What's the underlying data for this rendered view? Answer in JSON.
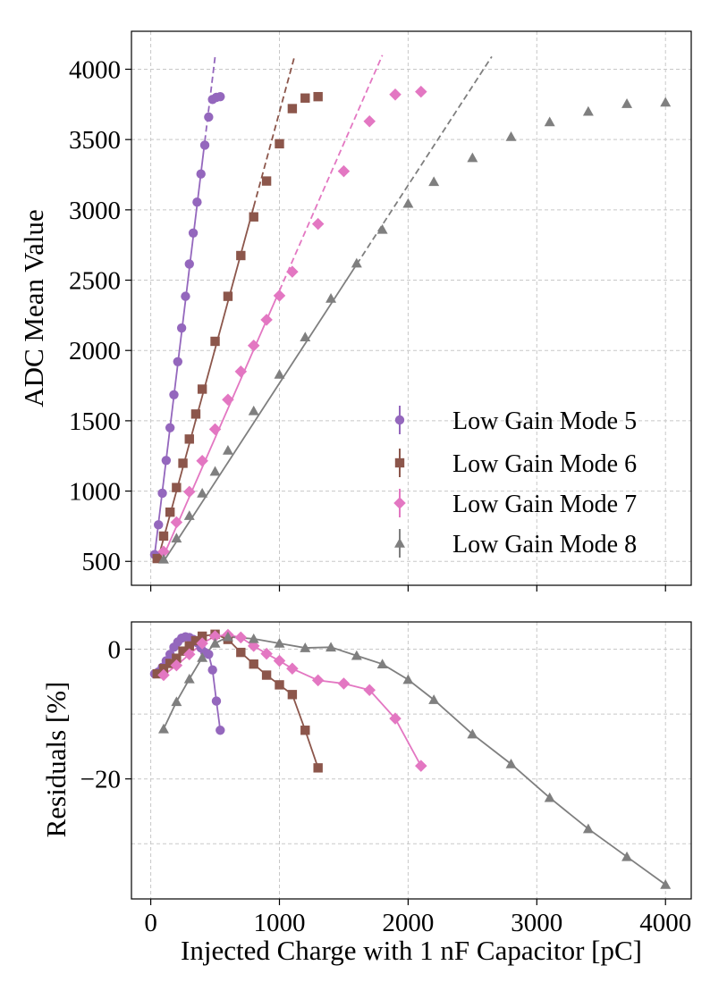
{
  "chart_data": [
    {
      "type": "scatter",
      "panel": "top",
      "xlabel": "",
      "ylabel": "ADC Mean Value",
      "xlim": [
        -150,
        4200
      ],
      "ylim": [
        330,
        4270
      ],
      "xticks": [
        0,
        1000,
        2000,
        3000,
        4000
      ],
      "yticks": [
        500,
        1000,
        1500,
        2000,
        2500,
        3000,
        3500,
        4000
      ],
      "ytick_labels": [
        "500",
        "1000",
        "1500",
        "2000",
        "2500",
        "3000",
        "3500",
        "4000"
      ],
      "grid": true,
      "legend_position": "lower-right",
      "series": [
        {
          "name": "Low Gain Mode 5",
          "color": "#9467bd",
          "marker": "circle",
          "x": [
            30,
            60,
            90,
            120,
            150,
            180,
            210,
            240,
            270,
            300,
            330,
            360,
            390,
            420,
            450,
            480,
            510,
            540
          ],
          "y": [
            548,
            760,
            985,
            1218,
            1450,
            1685,
            1920,
            2160,
            2385,
            2615,
            2835,
            3055,
            3255,
            3460,
            3660,
            3785,
            3800,
            3805
          ],
          "fit": {
            "x1": 30,
            "y1": 545,
            "x2": 500,
            "y2": 4090,
            "solid_until": 420
          }
        },
        {
          "name": "Low Gain Mode 6",
          "color": "#8c564b",
          "marker": "square",
          "x": [
            50,
            100,
            150,
            200,
            250,
            300,
            350,
            400,
            500,
            600,
            700,
            800,
            900,
            1000,
            1100,
            1200,
            1300
          ],
          "y": [
            520,
            680,
            850,
            1025,
            1198,
            1370,
            1548,
            1725,
            2065,
            2385,
            2675,
            2950,
            3205,
            3470,
            3720,
            3795,
            3805
          ],
          "fit": {
            "x1": 50,
            "y1": 495,
            "x2": 1120,
            "y2": 4100,
            "solid_until": 800
          }
        },
        {
          "name": "Low Gain Mode 7",
          "color": "#e377c2",
          "marker": "diamond",
          "x": [
            100,
            200,
            300,
            400,
            500,
            600,
            700,
            800,
            900,
            1000,
            1100,
            1300,
            1500,
            1700,
            1900,
            2100
          ],
          "y": [
            570,
            778,
            995,
            1215,
            1440,
            1650,
            1850,
            2035,
            2218,
            2390,
            2560,
            2900,
            3275,
            3630,
            3820,
            3840
          ],
          "fit": {
            "x1": 100,
            "y1": 540,
            "x2": 1800,
            "y2": 4100,
            "solid_until": 1000
          }
        },
        {
          "name": "Low Gain Mode 8",
          "color": "#7f7f7f",
          "marker": "triangle",
          "x": [
            100,
            200,
            300,
            400,
            500,
            600,
            800,
            1000,
            1200,
            1400,
            1600,
            1800,
            2000,
            2200,
            2500,
            2800,
            3100,
            3400,
            3700,
            4000
          ],
          "y": [
            515,
            665,
            825,
            985,
            1140,
            1290,
            1570,
            1830,
            2095,
            2370,
            2620,
            2860,
            3045,
            3200,
            3370,
            3520,
            3625,
            3700,
            3755,
            3765
          ],
          "fit": {
            "x1": 100,
            "y1": 500,
            "x2": 2650,
            "y2": 4090,
            "solid_until": 1600
          }
        }
      ]
    },
    {
      "type": "line",
      "panel": "bottom",
      "xlabel": "Injected Charge with 1 nF Capacitor [pC]",
      "ylabel": "Residuals [%]",
      "xlim": [
        -150,
        4200
      ],
      "ylim": [
        -38.5,
        4.2
      ],
      "xticks": [
        0,
        1000,
        2000,
        3000,
        4000
      ],
      "xtick_labels": [
        "0",
        "1000",
        "2000",
        "3000",
        "4000"
      ],
      "yticks": [
        0,
        -20
      ],
      "ytick_labels": [
        "0",
        "−20"
      ],
      "extra_grid_y": [
        -10,
        -30
      ],
      "grid": true,
      "series": [
        {
          "name": "Low Gain Mode 5",
          "color": "#9467bd",
          "marker": "circle",
          "x": [
            30,
            60,
            90,
            120,
            150,
            180,
            210,
            240,
            270,
            300,
            330,
            360,
            390,
            420,
            450,
            480,
            510,
            540
          ],
          "y": [
            -3.8,
            -3.5,
            -2.8,
            -1.8,
            -0.8,
            0.3,
            1.1,
            1.7,
            1.9,
            1.8,
            1.5,
            1.0,
            0.2,
            -0.5,
            -0.8,
            -3.2,
            -8.0,
            -12.5
          ]
        },
        {
          "name": "Low Gain Mode 6",
          "color": "#8c564b",
          "marker": "square",
          "x": [
            50,
            100,
            150,
            200,
            250,
            300,
            350,
            400,
            500,
            600,
            700,
            800,
            900,
            1000,
            1100,
            1200,
            1300
          ],
          "y": [
            -3.8,
            -3.0,
            -2.2,
            -1.4,
            -0.3,
            0.5,
            1.3,
            2.0,
            2.3,
            1.5,
            -0.5,
            -2.3,
            -4.0,
            -5.5,
            -7.0,
            -12.5,
            -18.3
          ]
        },
        {
          "name": "Low Gain Mode 7",
          "color": "#e377c2",
          "marker": "diamond",
          "x": [
            100,
            200,
            300,
            400,
            500,
            600,
            700,
            800,
            900,
            1000,
            1100,
            1300,
            1500,
            1700,
            1900,
            2100
          ],
          "y": [
            -4.0,
            -2.5,
            -0.8,
            0.9,
            2.0,
            2.2,
            1.8,
            0.5,
            -0.7,
            -1.8,
            -3.0,
            -4.8,
            -5.3,
            -6.3,
            -10.7,
            -18.0
          ]
        },
        {
          "name": "Low Gain Mode 8",
          "color": "#7f7f7f",
          "marker": "triangle",
          "x": [
            100,
            200,
            300,
            400,
            500,
            600,
            800,
            1000,
            1200,
            1400,
            1600,
            1800,
            2000,
            2200,
            2500,
            2800,
            3100,
            3400,
            3700,
            4000
          ],
          "y": [
            -12.3,
            -8.1,
            -4.6,
            -1.3,
            0.9,
            1.9,
            1.6,
            0.9,
            0.2,
            0.3,
            -1.0,
            -2.3,
            -4.7,
            -7.8,
            -13.1,
            -17.7,
            -22.9,
            -27.7,
            -32.0,
            -36.3
          ]
        }
      ]
    }
  ]
}
